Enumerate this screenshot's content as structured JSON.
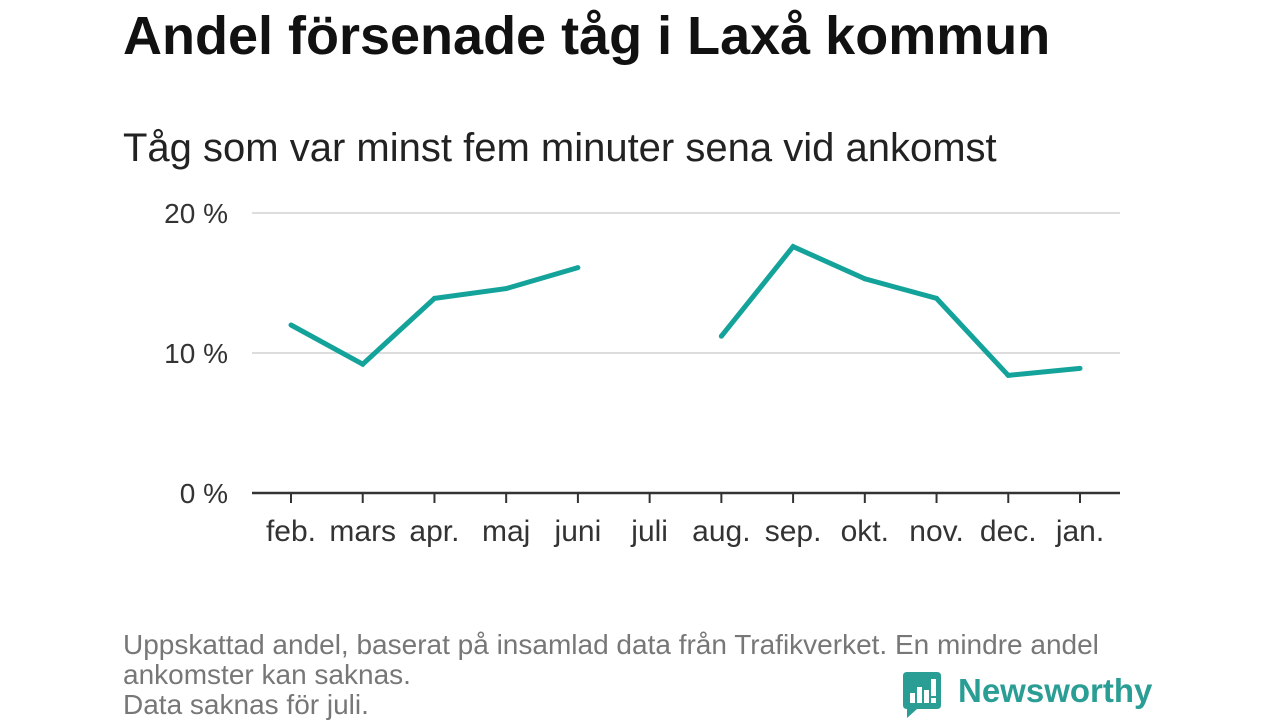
{
  "chart_data": {
    "type": "line",
    "title": "Andel försenade tåg i Laxå kommun",
    "subtitle": "Tåg som var minst fem minuter sena vid ankomst",
    "xlabel": "",
    "ylabel": "",
    "categories": [
      "feb.",
      "mars",
      "apr.",
      "maj",
      "juni",
      "juli",
      "aug.",
      "sep.",
      "okt.",
      "nov.",
      "dec.",
      "jan."
    ],
    "series": [
      {
        "values": [
          12.0,
          9.2,
          13.9,
          14.6,
          16.1,
          null,
          11.2,
          17.6,
          15.3,
          13.9,
          8.4,
          8.9
        ],
        "color": "#14a39a"
      }
    ],
    "y_ticks": [
      0,
      10,
      20
    ],
    "y_tick_labels": [
      "0 %",
      "10 %",
      "20 %"
    ],
    "ylim": [
      0,
      20
    ],
    "grid": true,
    "legend": "none"
  },
  "notes": [
    "Uppskattad andel, baserat på insamlad data från Trafikverket. En mindre andel ankomster kan saknas.",
    "Data saknas för juli."
  ],
  "brand": {
    "name": "Newsworthy",
    "icon": "newsworthy-logo-icon",
    "color": "#2a9d94"
  },
  "colors": {
    "background": "#ffffff",
    "title": "#111111",
    "text": "#222222",
    "muted": "#777777",
    "grid": "#dddddd",
    "axis": "#333333"
  }
}
